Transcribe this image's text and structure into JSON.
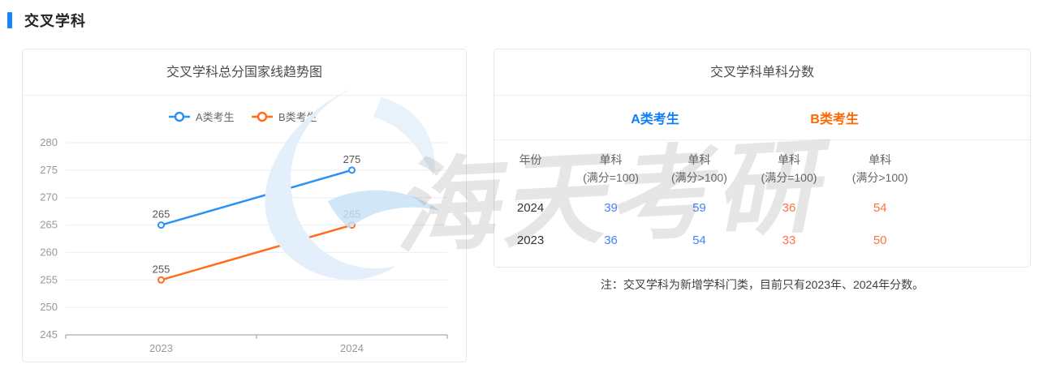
{
  "header": {
    "title": "交叉学科",
    "accent_color": "#1684FC"
  },
  "chart_card": {
    "title": "交叉学科总分国家线趋势图"
  },
  "chart_data": {
    "type": "line",
    "title": "交叉学科总分国家线趋势图",
    "categories": [
      "2023",
      "2024"
    ],
    "series": [
      {
        "name": "A类考生",
        "color": "#2B92F5",
        "values": [
          265,
          275
        ]
      },
      {
        "name": "B类考生",
        "color": "#FF6D1A",
        "values": [
          255,
          265
        ]
      }
    ],
    "xlabel": "",
    "ylabel": "",
    "ylim": [
      245,
      280
    ],
    "ytick_step": 5,
    "grid": true,
    "legend_position": "top",
    "grid_color": "#EBEEF5",
    "axis_color": "#999999",
    "label_color": "#555555"
  },
  "table_card": {
    "title": "交叉学科单科分数",
    "groups": [
      {
        "label": "A类考生",
        "color": "#0D7EF7"
      },
      {
        "label": "B类考生",
        "color": "#FF6600"
      }
    ],
    "columns": [
      {
        "line1": "年份",
        "line2": ""
      },
      {
        "line1": "单科",
        "line2": "(满分=100)"
      },
      {
        "line1": "单科",
        "line2": "(满分>100)"
      },
      {
        "line1": "单科",
        "line2": "(满分=100)"
      },
      {
        "line1": "单科",
        "line2": "(满分>100)"
      }
    ],
    "rows": [
      {
        "year": "2024",
        "values": [
          "39",
          "59",
          "36",
          "54"
        ]
      },
      {
        "year": "2023",
        "values": [
          "36",
          "54",
          "33",
          "50"
        ]
      }
    ],
    "value_colors": [
      "#4285F4",
      "#4285F4",
      "#FF7043",
      "#FF7043"
    ],
    "note": "注：交叉学科为新增学科门类，目前只有2023年、2024年分数。"
  },
  "watermark": {
    "text": "海天考研"
  }
}
